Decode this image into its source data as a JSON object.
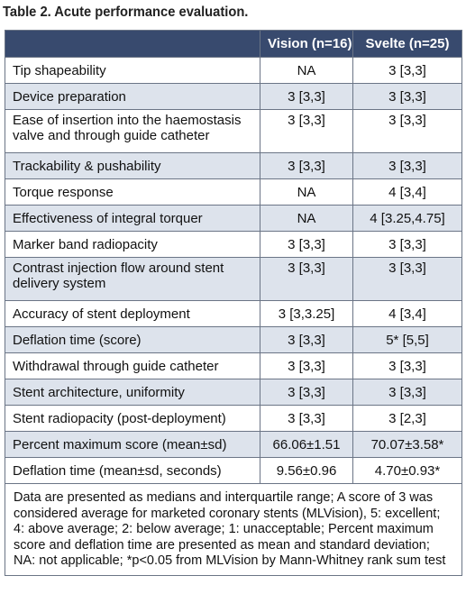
{
  "title": "Table 2. Acute performance evaluation.",
  "table": {
    "headers": [
      "",
      "Vision (n=16)",
      "Svelte (n=25)"
    ],
    "rows": [
      {
        "label": "Tip shapeability",
        "vision": "NA",
        "svelte": "3 [3,3]"
      },
      {
        "label": "Device preparation",
        "vision": "3 [3,3]",
        "svelte": "3 [3,3]"
      },
      {
        "label": "Ease of insertion into the haemostasis valve and through guide catheter",
        "vision": "3 [3,3]",
        "svelte": "3 [3,3]"
      },
      {
        "label": "Trackability & pushability",
        "vision": "3 [3,3]",
        "svelte": "3 [3,3]"
      },
      {
        "label": "Torque response",
        "vision": "NA",
        "svelte": "4 [3,4]"
      },
      {
        "label": "Effectiveness of integral torquer",
        "vision": "NA",
        "svelte": "4 [3.25,4.75]"
      },
      {
        "label": "Marker band radiopacity",
        "vision": "3 [3,3]",
        "svelte": "3 [3,3]"
      },
      {
        "label": "Contrast injection flow around stent delivery system",
        "vision": "3 [3,3]",
        "svelte": "3 [3,3]"
      },
      {
        "label": "Accuracy of stent deployment",
        "vision": "3 [3,3.25]",
        "svelte": "4 [3,4]"
      },
      {
        "label": "Deflation time (score)",
        "vision": "3 [3,3]",
        "svelte": "5* [5,5]"
      },
      {
        "label": "Withdrawal through guide catheter",
        "vision": "3 [3,3]",
        "svelte": "3 [3,3]"
      },
      {
        "label": "Stent architecture, uniformity",
        "vision": "3 [3,3]",
        "svelte": "3 [3,3]"
      },
      {
        "label": "Stent radiopacity (post-deployment)",
        "vision": "3 [3,3]",
        "svelte": "3 [2,3]"
      },
      {
        "label": "Percent maximum score (mean±sd)",
        "vision": "66.06±1.51",
        "svelte": "70.07±3.58*"
      },
      {
        "label": "Deflation time (mean±sd, seconds)",
        "vision": "9.56±0.96",
        "svelte": "4.70±0.93*"
      }
    ],
    "footnote": "Data are presented as medians and interquartile range; A score of 3 was considered average for marketed coronary stents (MLVision), 5: excellent; 4: above average; 2: below average; 1: unacceptable; Percent maximum score and deflation time are presented as mean and standard deviation; NA: not applicable; *p<0.05 from MLVision by Mann-Whitney rank sum test"
  },
  "colors": {
    "header_bg": "#384a6e",
    "shade_bg": "#dde3ec",
    "border": "#6b7586"
  }
}
